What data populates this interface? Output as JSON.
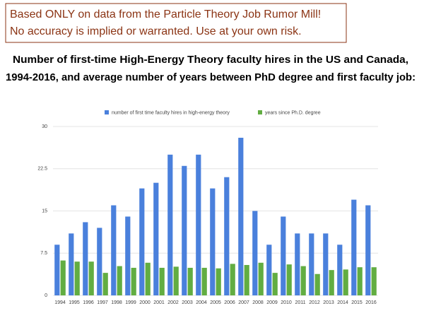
{
  "disclaimer": [
    "Based ONLY on data from the Particle Theory Job Rumor Mill!",
    "No accuracy is implied or warranted. Use at your own risk."
  ],
  "chart_data": {
    "type": "bar",
    "title": [
      "Number of first-time High-Energy Theory faculty hires in the US and Canada,",
      "1994-2016, and average number of years between PhD degree and first faculty job:"
    ],
    "categories": [
      "1994",
      "1995",
      "1996",
      "1997",
      "1998",
      "1999",
      "2000",
      "2001",
      "2002",
      "2003",
      "2004",
      "2005",
      "2006",
      "2007",
      "2008",
      "2009",
      "2010",
      "2011",
      "2012",
      "2013",
      "2014",
      "2015",
      "2016"
    ],
    "series": [
      {
        "name": "number of first time faculty hires in high-energy theory",
        "color": "#4a80dc",
        "values": [
          9,
          11,
          13,
          12,
          16,
          14,
          19,
          20,
          25,
          23,
          25,
          19,
          21,
          28,
          15,
          9,
          14,
          11,
          11,
          11,
          9,
          17,
          16
        ]
      },
      {
        "name": "years since Ph.D. degree",
        "color": "#62ad42",
        "values": [
          6.2,
          6.0,
          6.0,
          4.0,
          5.2,
          4.9,
          5.8,
          4.9,
          5.1,
          4.9,
          4.9,
          4.8,
          5.6,
          5.4,
          5.8,
          4.0,
          5.5,
          5.2,
          3.8,
          4.5,
          4.6,
          5.0,
          5.0
        ]
      }
    ],
    "ylim": [
      0,
      30
    ],
    "yticks": [
      0,
      7.5,
      15,
      22.5,
      30
    ],
    "grid": true
  }
}
